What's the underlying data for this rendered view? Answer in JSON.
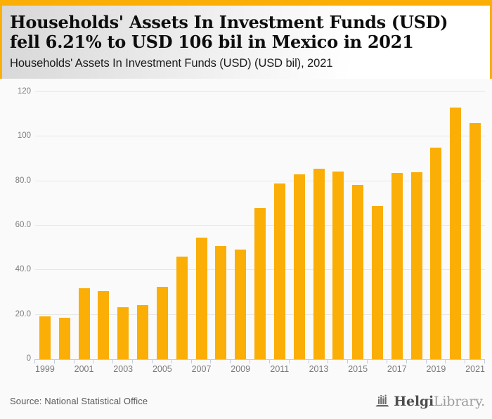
{
  "page": {
    "title": "Households' Assets In Investment Funds (USD) fell 6.21% to USD 106 bil in Mexico in 2021",
    "subtitle": "Households' Assets In Investment Funds (USD) (USD bil), 2021"
  },
  "chart_data": {
    "type": "bar",
    "title": "Households' Assets In Investment Funds (USD) fell 6.21% to USD 106 bil in Mexico in 2021",
    "subtitle": "Households' Assets In Investment Funds (USD) (USD bil), 2021",
    "ylabel": "USD bil",
    "ylim": [
      0,
      120
    ],
    "yticks": [
      120,
      100,
      80,
      60,
      40,
      20,
      0
    ],
    "ytick_labels": [
      "120",
      "100",
      "80.0",
      "60.0",
      "40.0",
      "20.0",
      "0"
    ],
    "categories": [
      "1999",
      "2000",
      "2001",
      "2002",
      "2003",
      "2004",
      "2005",
      "2006",
      "2007",
      "2008",
      "2009",
      "2010",
      "2011",
      "2012",
      "2013",
      "2014",
      "2015",
      "2016",
      "2017",
      "2018",
      "2019",
      "2020",
      "2021"
    ],
    "values": [
      19.3,
      18.5,
      31.8,
      30.7,
      23.4,
      24.2,
      32.4,
      46.0,
      54.7,
      50.9,
      49.4,
      68.0,
      79.0,
      83.2,
      85.7,
      84.2,
      78.2,
      68.7,
      83.8,
      83.9,
      95.0,
      113.0,
      106.0
    ],
    "xtick_labels": [
      "1999",
      "2001",
      "2003",
      "2005",
      "2007",
      "2009",
      "2011",
      "2013",
      "2015",
      "2017",
      "2019",
      "2021"
    ],
    "grid": true,
    "legend": "none",
    "bar_color": "#FAAE06"
  },
  "footer": {
    "source": "Source: National Statistical Office",
    "logo": {
      "icon": "bar-chart-icon",
      "text_primary": "Helgi",
      "text_secondary": "Library."
    }
  },
  "colors": {
    "accent": "#FAAE06",
    "bar": "#FAAE06",
    "gridline": "#E7E7E7",
    "axis": "#C2CBE4",
    "tick_label": "#7D7D7D",
    "chart_bg": "#FAFAFA",
    "header_gradient_start": "#D7D7D7",
    "header_gradient_end": "#FFFFFF"
  }
}
